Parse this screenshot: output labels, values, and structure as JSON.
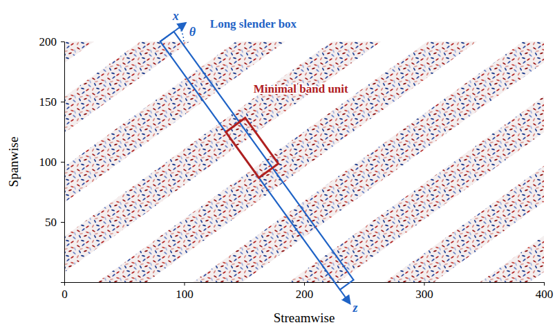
{
  "chart_data": {
    "type": "flow_field",
    "xlabel": "Streamwise",
    "ylabel": "Spanwise",
    "xlim": [
      0,
      400
    ],
    "ylim": [
      0,
      200
    ],
    "xticks": [
      0,
      100,
      200,
      300,
      400
    ],
    "yticks": [
      50,
      100,
      150,
      200
    ],
    "bands": {
      "angle": 36,
      "width": 30,
      "intercepts": [
        -282,
        -224,
        -166,
        -108,
        -50,
        8,
        66,
        124,
        182
      ]
    },
    "long_box": {
      "label": "Long slender box",
      "origin": [
        80,
        200
      ],
      "length": 255,
      "width": 14,
      "color": "#1f63c6"
    },
    "minimal_box": {
      "label": "Minimal band unit",
      "z_range": [
        93,
        140
      ],
      "width": 20,
      "color": "#b0201f"
    },
    "axis_labels": {
      "x": "x",
      "z": "z",
      "angle": "θ"
    }
  }
}
